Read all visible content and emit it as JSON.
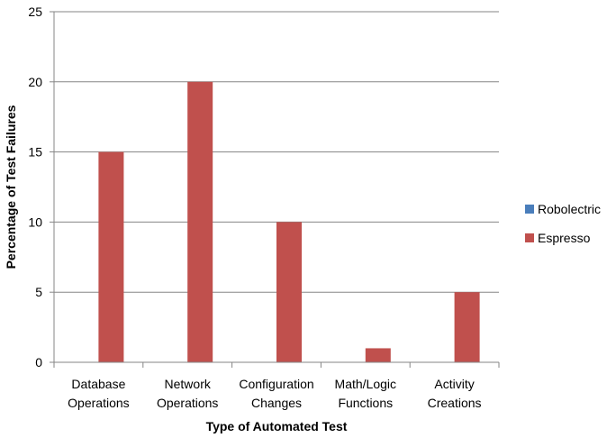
{
  "chart_data": {
    "type": "bar",
    "title": "",
    "xlabel": "Type of Automated Test",
    "ylabel": "Percentage of Test Failures",
    "ylim": [
      0,
      25
    ],
    "yticks": [
      0,
      5,
      10,
      15,
      20,
      25
    ],
    "grid": true,
    "legend_position": "right",
    "categories": [
      [
        "Database",
        "Operations"
      ],
      [
        "Network",
        "Operations"
      ],
      [
        "Configuration",
        "Changes"
      ],
      [
        "Math/Logic",
        "Functions"
      ],
      [
        "Activity",
        "Creations"
      ]
    ],
    "series": [
      {
        "name": "Robolectric",
        "color": "#4a7ebb",
        "values": [
          0,
          0,
          0,
          0,
          0
        ]
      },
      {
        "name": "Espresso",
        "color": "#c0504d",
        "values": [
          15,
          20,
          10,
          1,
          5
        ]
      }
    ]
  }
}
